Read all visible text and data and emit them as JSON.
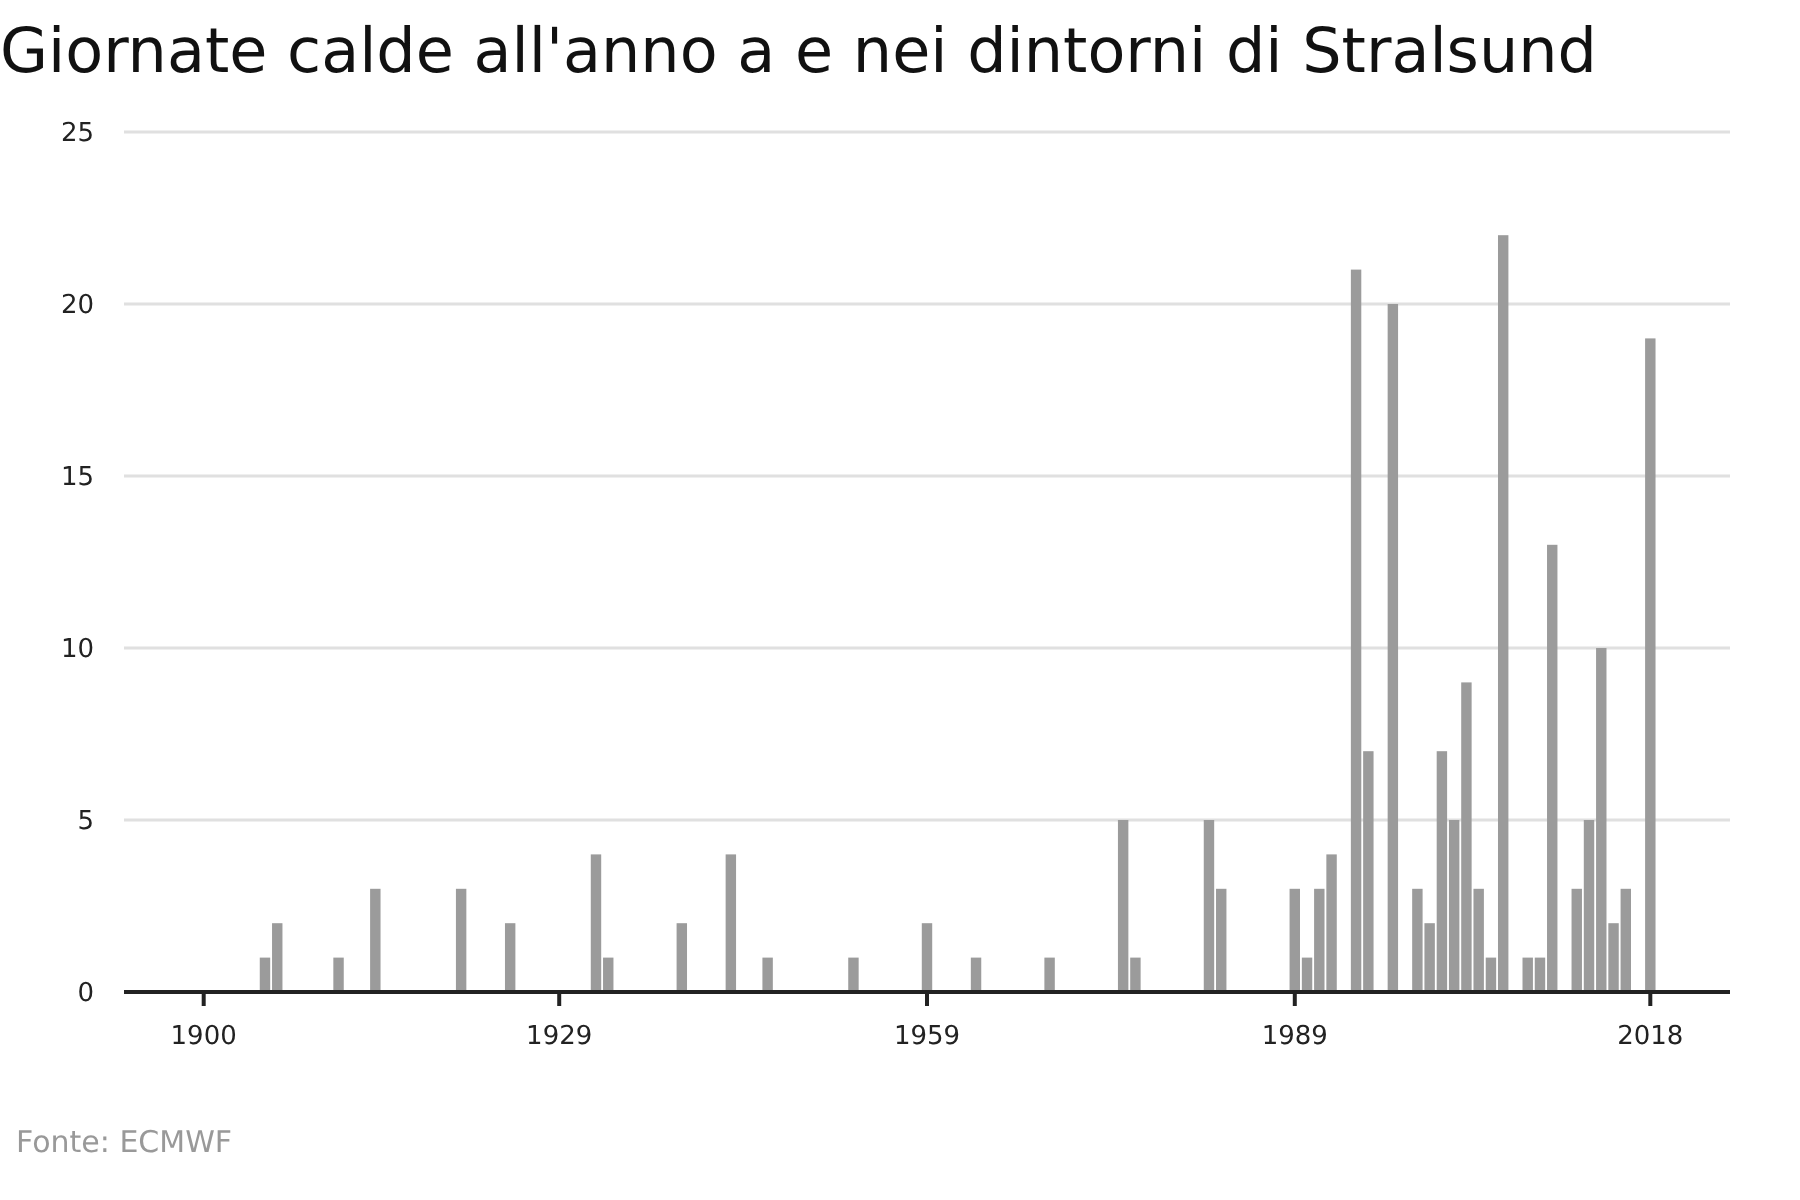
{
  "chart_data": {
    "type": "bar",
    "title": "Giornate calde all'anno a e nei dintorni di Stralsund",
    "x": [
      1905,
      1906,
      1911,
      1914,
      1921,
      1925,
      1932,
      1933,
      1939,
      1943,
      1946,
      1953,
      1959,
      1963,
      1969,
      1975,
      1976,
      1982,
      1983,
      1989,
      1990,
      1991,
      1992,
      1994,
      1995,
      1997,
      1999,
      2000,
      2001,
      2002,
      2003,
      2004,
      2005,
      2006,
      2008,
      2009,
      2010,
      2012,
      2013,
      2014,
      2015,
      2016,
      2018
    ],
    "values": [
      1,
      2,
      1,
      3,
      3,
      2,
      4,
      1,
      2,
      4,
      1,
      1,
      2,
      1,
      1,
      5,
      1,
      5,
      3,
      3,
      1,
      3,
      4,
      21,
      7,
      20,
      3,
      2,
      7,
      5,
      9,
      3,
      1,
      22,
      1,
      1,
      13,
      3,
      5,
      10,
      2,
      3,
      19
    ],
    "color": "#9b9b9b",
    "xlim": [
      1893.5,
      2024.5
    ],
    "xticks": [
      1900,
      1929,
      1959,
      1989,
      2018
    ],
    "ylim": [
      0,
      25
    ],
    "yticks": [
      0,
      5,
      10,
      15,
      20,
      25
    ],
    "grid": "y",
    "annotations": [
      "Fonte: ECMWF"
    ]
  }
}
